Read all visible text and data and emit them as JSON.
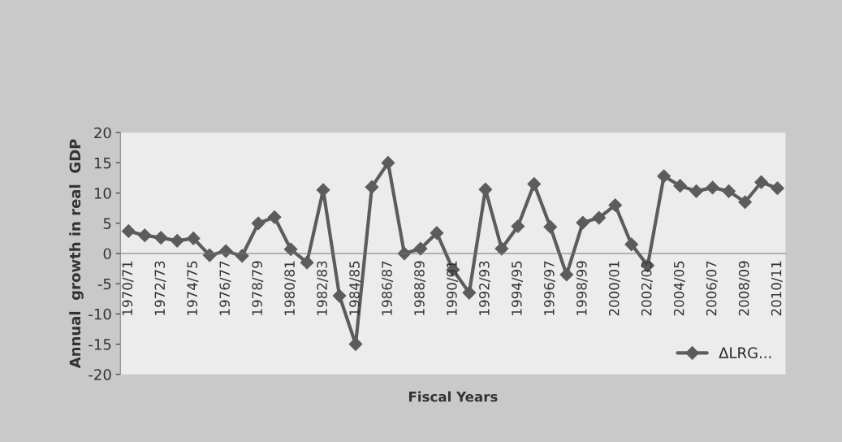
{
  "chart_data": {
    "type": "line",
    "xlabel": "Fiscal Years",
    "ylabel": "Annual  growth in real  GDP",
    "categories": [
      "1970/71",
      null,
      "1972/73",
      null,
      "1974/75",
      null,
      "1976/77",
      null,
      "1978/79",
      null,
      "1980/81",
      null,
      "1982/83",
      null,
      "1984/85",
      null,
      "1986/87",
      null,
      "1988/89",
      null,
      "1990/91",
      null,
      "1992/93",
      null,
      "1994/95",
      null,
      "1996/97",
      null,
      "1998/99",
      null,
      "2000/01",
      null,
      "2002/03",
      null,
      "2004/05",
      null,
      "2006/07",
      null,
      "2008/09",
      null,
      "2010/11"
    ],
    "series": [
      {
        "name": "ΔLRG...",
        "color": "#5a5d5a",
        "values": [
          3.7,
          3.0,
          2.6,
          2.1,
          2.5,
          -0.3,
          0.4,
          -0.4,
          5.0,
          6.0,
          0.7,
          -1.5,
          10.5,
          -7.0,
          -15.0,
          11.0,
          15.0,
          0.0,
          0.8,
          3.4,
          -2.7,
          -6.5,
          10.6,
          0.8,
          4.5,
          11.5,
          4.4,
          -3.5,
          5.1,
          5.9,
          8.0,
          1.5,
          -2.0,
          12.8,
          11.2,
          10.3,
          10.9,
          10.3,
          8.5,
          11.8,
          10.8
        ]
      }
    ],
    "ylim": [
      -20,
      20
    ],
    "yticks": [
      -20,
      -15,
      -10,
      -5,
      0,
      5,
      10,
      15,
      20
    ],
    "marker": "diamond",
    "line_style": "solid",
    "grid": false,
    "legend": "bottom right"
  }
}
